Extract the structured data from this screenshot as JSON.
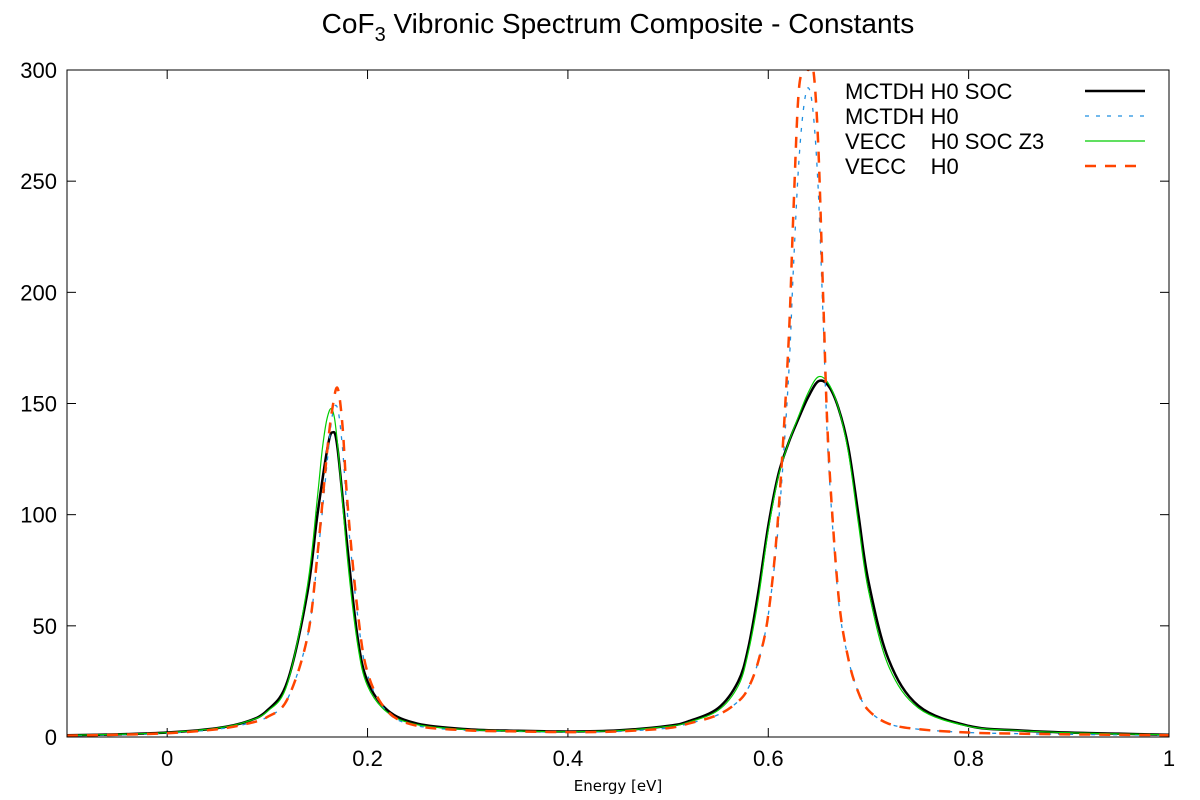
{
  "chart_data": {
    "type": "line",
    "title": {
      "main": "CoF",
      "subscript": "3",
      "rest": " Vibronic Spectrum Composite - Constants"
    },
    "xlabel": "Energy [eV]",
    "ylabel": "",
    "xlim": [
      -0.1,
      1.0
    ],
    "ylim": [
      0,
      300
    ],
    "x_ticks": [
      0,
      0.2,
      0.4,
      0.6,
      0.8,
      1.0
    ],
    "x_tick_labels": [
      "0",
      "0.2",
      "0.4",
      "0.6",
      "0.8",
      "1"
    ],
    "y_ticks": [
      0,
      50,
      100,
      150,
      200,
      250,
      300
    ],
    "y_tick_labels": [
      "0",
      "50",
      "100",
      "150",
      "200",
      "250",
      "300"
    ],
    "grid": false,
    "legend_position": "top-right",
    "series": [
      {
        "name": "MCTDH H0 SOC",
        "color": "#000000",
        "dash": "solid",
        "width": 2.5,
        "x": [
          -0.1,
          -0.05,
          0.0,
          0.05,
          0.08,
          0.1,
          0.12,
          0.14,
          0.15,
          0.16,
          0.165,
          0.17,
          0.18,
          0.19,
          0.2,
          0.22,
          0.25,
          0.3,
          0.35,
          0.4,
          0.45,
          0.5,
          0.52,
          0.55,
          0.57,
          0.58,
          0.59,
          0.6,
          0.61,
          0.62,
          0.63,
          0.64,
          0.65,
          0.66,
          0.67,
          0.68,
          0.69,
          0.7,
          0.72,
          0.75,
          0.8,
          0.85,
          0.9,
          0.95,
          1.0
        ],
        "y": [
          0.8,
          1.2,
          2.0,
          4.0,
          7.0,
          12.0,
          25.0,
          65.0,
          100.0,
          130.0,
          137.0,
          130.0,
          85.0,
          45.0,
          25.0,
          12.0,
          6.0,
          3.5,
          2.8,
          2.5,
          3.0,
          5.0,
          7.0,
          13.0,
          25.0,
          40.0,
          65.0,
          95.0,
          118.0,
          132.0,
          143.0,
          153.0,
          160.0,
          158.0,
          148.0,
          130.0,
          100.0,
          70.0,
          35.0,
          14.0,
          5.0,
          3.0,
          2.0,
          1.5,
          1.0
        ]
      },
      {
        "name": "MCTDH H0",
        "color": "#1f8fe0",
        "dash": "dotted",
        "width": 1.3,
        "x": [
          -0.1,
          -0.05,
          0.0,
          0.05,
          0.08,
          0.1,
          0.12,
          0.14,
          0.15,
          0.16,
          0.165,
          0.17,
          0.175,
          0.18,
          0.19,
          0.2,
          0.22,
          0.25,
          0.3,
          0.35,
          0.4,
          0.45,
          0.5,
          0.52,
          0.55,
          0.57,
          0.58,
          0.59,
          0.6,
          0.61,
          0.62,
          0.625,
          0.63,
          0.635,
          0.64,
          0.645,
          0.65,
          0.655,
          0.66,
          0.67,
          0.68,
          0.69,
          0.7,
          0.72,
          0.75,
          0.8,
          0.85,
          0.9,
          0.95,
          1.0
        ],
        "y": [
          0.6,
          1.0,
          1.7,
          3.5,
          6.0,
          9.0,
          17.0,
          45.0,
          80.0,
          125.0,
          145.0,
          148.0,
          130.0,
          100.0,
          55.0,
          28.0,
          11.0,
          5.0,
          3.0,
          2.5,
          2.2,
          2.5,
          4.0,
          6.0,
          10.0,
          16.0,
          22.0,
          34.0,
          55.0,
          95.0,
          160.0,
          210.0,
          255.0,
          282.0,
          292.0,
          280.0,
          245.0,
          185.0,
          125.0,
          62.0,
          35.0,
          20.0,
          12.0,
          6.0,
          3.5,
          2.0,
          1.5,
          1.2,
          1.0,
          0.8
        ]
      },
      {
        "name": "VECC    H0 SOC Z3",
        "color": "#00cc00",
        "dash": "solid",
        "width": 1.2,
        "x": [
          -0.1,
          -0.05,
          0.0,
          0.05,
          0.08,
          0.1,
          0.12,
          0.14,
          0.15,
          0.155,
          0.16,
          0.165,
          0.17,
          0.18,
          0.19,
          0.2,
          0.22,
          0.25,
          0.3,
          0.35,
          0.4,
          0.45,
          0.5,
          0.52,
          0.55,
          0.57,
          0.58,
          0.59,
          0.6,
          0.61,
          0.62,
          0.63,
          0.64,
          0.65,
          0.66,
          0.67,
          0.68,
          0.69,
          0.7,
          0.72,
          0.75,
          0.8,
          0.85,
          0.9,
          0.95,
          1.0
        ],
        "y": [
          0.8,
          1.2,
          2.0,
          4.0,
          7.0,
          11.5,
          24.0,
          68.0,
          108.0,
          130.0,
          144.0,
          147.0,
          132.0,
          80.0,
          42.0,
          23.0,
          11.0,
          5.5,
          3.3,
          2.7,
          2.4,
          2.9,
          4.8,
          6.6,
          12.0,
          23.0,
          38.0,
          62.0,
          93.0,
          117.0,
          132.0,
          144.0,
          155.0,
          162.0,
          159.0,
          148.0,
          128.0,
          96.0,
          66.0,
          32.0,
          13.0,
          4.8,
          2.9,
          1.9,
          1.4,
          1.0
        ]
      },
      {
        "name": "VECC    H0",
        "color": "#ff4500",
        "dash": "dashed",
        "width": 2.5,
        "x": [
          -0.1,
          -0.05,
          0.0,
          0.05,
          0.08,
          0.1,
          0.12,
          0.14,
          0.15,
          0.16,
          0.165,
          0.17,
          0.175,
          0.18,
          0.19,
          0.2,
          0.22,
          0.25,
          0.3,
          0.35,
          0.4,
          0.45,
          0.5,
          0.52,
          0.55,
          0.57,
          0.58,
          0.59,
          0.6,
          0.61,
          0.62,
          0.625,
          0.63,
          0.635,
          0.64,
          0.645,
          0.65,
          0.655,
          0.66,
          0.67,
          0.68,
          0.69,
          0.7,
          0.72,
          0.75,
          0.8,
          0.85,
          0.9,
          0.95,
          1.0
        ],
        "y": [
          0.6,
          1.0,
          1.7,
          3.5,
          6.0,
          9.0,
          17.0,
          45.0,
          82.0,
          130.0,
          148.0,
          157.0,
          140.0,
          105.0,
          57.0,
          29.0,
          11.5,
          5.0,
          3.0,
          2.5,
          2.2,
          2.5,
          4.0,
          6.0,
          10.0,
          16.0,
          22.0,
          34.0,
          55.0,
          100.0,
          175.0,
          235.0,
          288.0,
          300.0,
          300.0,
          300.0,
          265.0,
          195.0,
          130.0,
          64.0,
          35.0,
          20.0,
          12.0,
          6.0,
          3.5,
          2.0,
          1.5,
          1.2,
          1.0,
          0.8
        ]
      }
    ]
  }
}
